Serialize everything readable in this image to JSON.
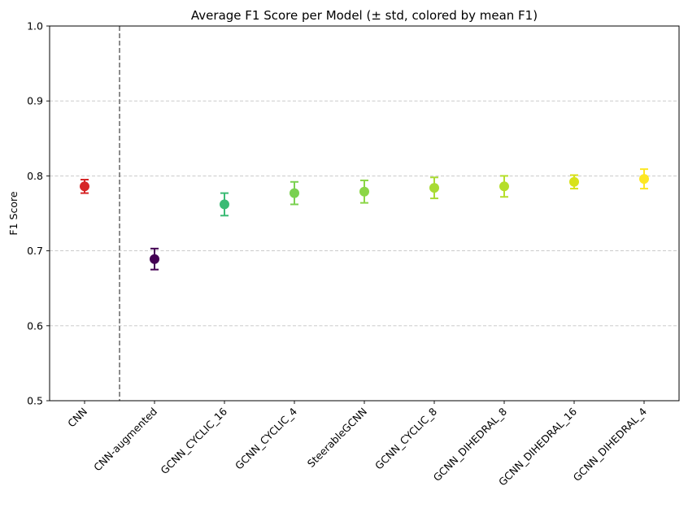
{
  "chart_data": {
    "type": "scatter",
    "title": "Average F1 Score per Model (± std, colored by mean F1)",
    "xlabel": "",
    "ylabel": "F1 Score",
    "ylim": [
      0.5,
      1.0
    ],
    "yticks": [
      "0.5",
      "0.6",
      "0.7",
      "0.8",
      "0.9",
      "1.0"
    ],
    "grid": "y-dashed",
    "categories": [
      "CNN",
      "CNN-augmented",
      "GCNN_CYCLIC_16",
      "GCNN_CYCLIC_4",
      "SteerableGCNN",
      "GCNN_CYCLIC_8",
      "GCNN_DIHEDRAL_8",
      "GCNN_DIHEDRAL_16",
      "GCNN_DIHEDRAL_4"
    ],
    "means": [
      0.786,
      0.689,
      0.762,
      0.777,
      0.779,
      0.784,
      0.786,
      0.792,
      0.796
    ],
    "stds": [
      0.009,
      0.014,
      0.015,
      0.015,
      0.015,
      0.014,
      0.014,
      0.009,
      0.013
    ],
    "colors": [
      "#d62728",
      "#440154",
      "#3bbb75",
      "#7ad151",
      "#8bd646",
      "#a8db34",
      "#b5de2b",
      "#d8e219",
      "#fde725"
    ],
    "separator_after_index": 0
  }
}
